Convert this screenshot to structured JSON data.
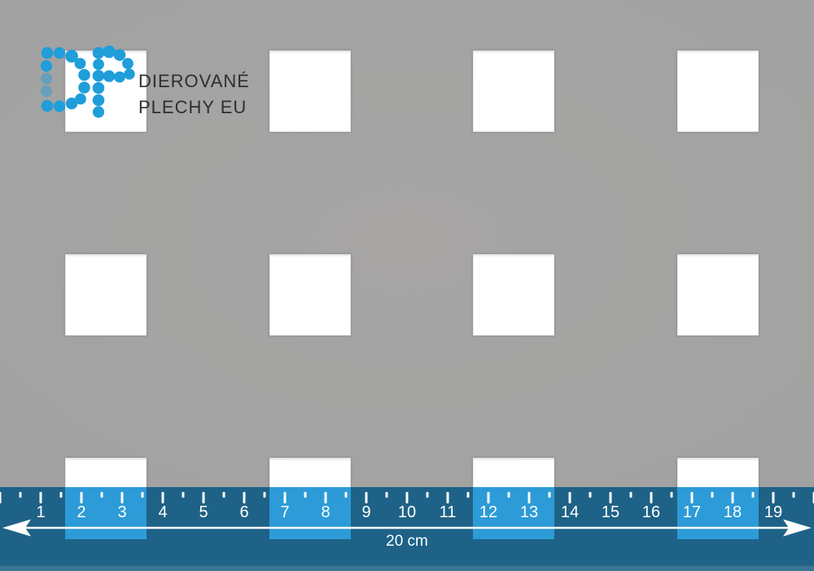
{
  "brand": {
    "line1": "DIEROVANÉ",
    "line2": "PLECHY EU",
    "logo_icon": "dp-dot-matrix-logo",
    "logo_color": "#1f9ed9",
    "text_color": "#2f2f2f"
  },
  "sheet": {
    "material_color": "#a2a2a2",
    "hole_color": "#ffffff",
    "hole_shape": "square",
    "hole_rows": 3,
    "holes_per_row": 4
  },
  "ruler": {
    "numbers": [
      "1",
      "2",
      "3",
      "4",
      "5",
      "6",
      "7",
      "8",
      "9",
      "10",
      "11",
      "12",
      "13",
      "14",
      "15",
      "16",
      "17",
      "18",
      "19"
    ],
    "label": "20 cm",
    "band_color": "#1e6287",
    "highlight_color": "#2d9bd7",
    "tick_color": "#ffffff",
    "arrow_icon": "double-headed-arrow"
  }
}
